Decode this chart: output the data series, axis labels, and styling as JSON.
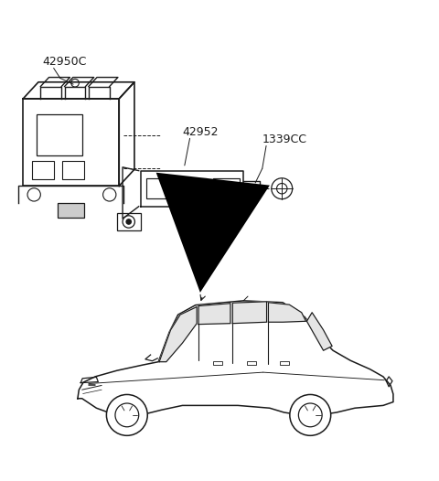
{
  "title": "",
  "background_color": "#ffffff",
  "line_color": "#1a1a1a",
  "label_color": "#1a1a1a",
  "labels": {
    "42950C": [
      0.115,
      0.895
    ],
    "42952": [
      0.465,
      0.735
    ],
    "1339CC": [
      0.63,
      0.718
    ]
  },
  "figsize": [
    4.8,
    5.26
  ],
  "dpi": 100
}
